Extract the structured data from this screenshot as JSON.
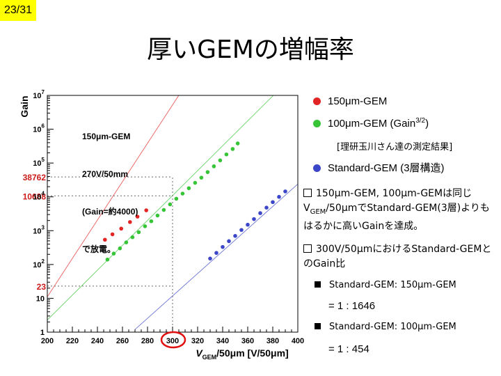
{
  "page_number": "23/31",
  "slide_title": "厚いGEMの増幅率",
  "chart_data": {
    "type": "scatter",
    "xlabel": "VGEM/50μm [V/50μm]",
    "ylabel": "Gain",
    "xlim": [
      200,
      400
    ],
    "ylim": [
      1,
      10000000
    ],
    "log_y": true,
    "x_ticks": [
      "200",
      "220",
      "240",
      "260",
      "280",
      "300",
      "320",
      "340",
      "360",
      "380",
      "400"
    ],
    "y_ticks": [
      "1",
      "10",
      "10^2",
      "10^3",
      "10^4",
      "10^5",
      "10^6",
      "10^7"
    ],
    "left_annotations": [
      {
        "text": "38762",
        "value": 38762
      },
      {
        "text": "10688",
        "value": 10688
      },
      {
        "text": "23",
        "value": 23
      }
    ],
    "highlight_x": 300,
    "series": [
      {
        "color": "#e32424",
        "points": [
          [
            246,
            540
          ],
          [
            252,
            780
          ],
          [
            259,
            1150
          ],
          [
            266,
            1800
          ],
          [
            272,
            2600
          ],
          [
            279,
            4000
          ]
        ],
        "fit": [
          [
            190,
            3
          ],
          [
            318,
            55000000
          ]
        ]
      },
      {
        "color": "#37c437",
        "points": [
          [
            248,
            140
          ],
          [
            253,
            210
          ],
          [
            258,
            300
          ],
          [
            263,
            450
          ],
          [
            268,
            640
          ],
          [
            273,
            900
          ],
          [
            278,
            1350
          ],
          [
            283,
            1900
          ],
          [
            288,
            2800
          ],
          [
            293,
            4100
          ],
          [
            298,
            6000
          ],
          [
            303,
            8800
          ],
          [
            308,
            12500
          ],
          [
            313,
            18000
          ],
          [
            318,
            26000
          ],
          [
            323,
            37000
          ],
          [
            328,
            54000
          ],
          [
            333,
            80000
          ],
          [
            338,
            120000
          ],
          [
            343,
            180000
          ],
          [
            348,
            260000
          ],
          [
            352,
            380000
          ]
        ],
        "fit": [
          [
            195,
            1.5
          ],
          [
            405,
            80000000
          ]
        ]
      },
      {
        "color": "#3c46c8",
        "points": [
          [
            330,
            150
          ],
          [
            335,
            220
          ],
          [
            340,
            330
          ],
          [
            345,
            490
          ],
          [
            350,
            700
          ],
          [
            355,
            1050
          ],
          [
            360,
            1500
          ],
          [
            365,
            2200
          ],
          [
            370,
            3300
          ],
          [
            375,
            4800
          ],
          [
            380,
            7000
          ],
          [
            385,
            10000
          ],
          [
            390,
            14500
          ]
        ],
        "fit": [
          [
            270,
            1.2
          ],
          [
            405,
            35000
          ]
        ]
      }
    ]
  },
  "annotation": {
    "line1": "150μm-GEM",
    "line2": "270V/50mm",
    "line3": "(Gain=約4000)",
    "line4": "で放電。"
  },
  "legend": {
    "item1": {
      "label": "150μm-GEM",
      "color": "#e32424"
    },
    "item2": {
      "label": "100μm-GEM (Gain",
      "sup": "3/2",
      "tail": ")",
      "color": "#37c437"
    },
    "note": "[理研玉川さん達の測定結果]",
    "item3": {
      "label": "Standard-GEM (3層構造)",
      "color": "#3c46c8"
    }
  },
  "bullets": {
    "b1_part1": "150μm-GEM, 100μm-GEMは同じV",
    "b1_sub": "GEM",
    "b1_part2": "/50μmでStandard-GEM(3層)よりもはるかに高いGainを達成。",
    "b2": "300V/50μmにおけるStandard-GEMとのGain比",
    "s1": "Standard-GEM: 150μm-GEM",
    "r1": "= 1 : 1646",
    "s2": "Standard-GEM: 100μm-GEM",
    "r2": "= 1 : 454"
  }
}
